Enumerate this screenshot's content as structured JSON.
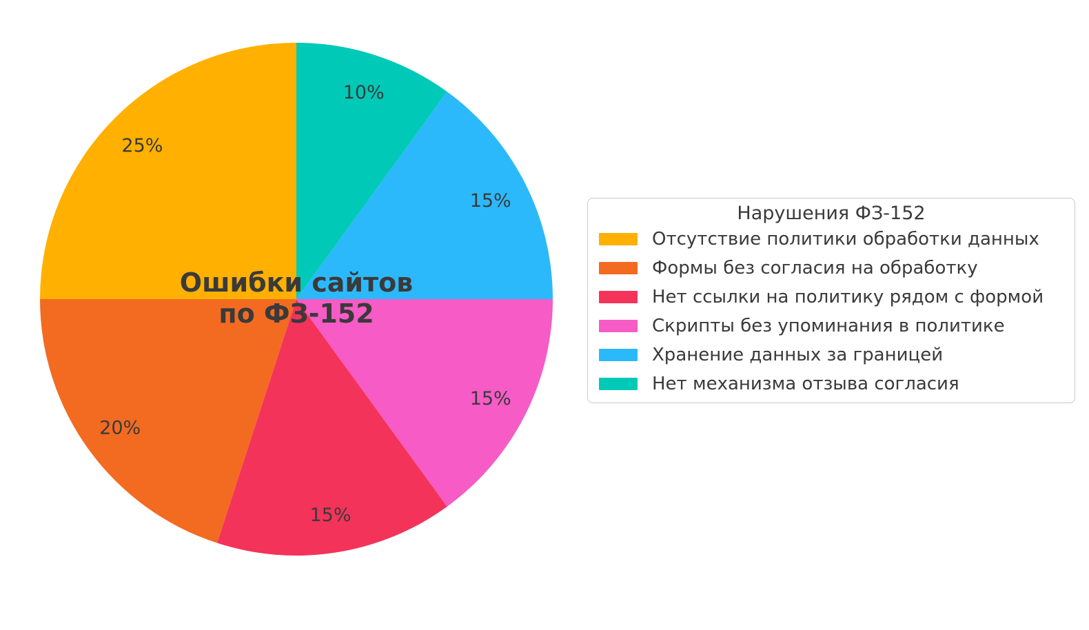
{
  "canvas": {
    "background": "#FFFFFF"
  },
  "colors": {
    "label_text": "#3A3A3A",
    "legend_border": "#C9C9C9",
    "legend_background": "#FFFFFF"
  },
  "chart_data": {
    "type": "pie",
    "center_title_lines": [
      "Ошибки сайтов",
      "по ФЗ-152"
    ],
    "start_angle_deg": 90,
    "counterclockwise": true,
    "pct_distance": 0.85,
    "slices": [
      {
        "label": "Отсутствие политики обработки данных",
        "value": 25,
        "pct_label": "25%",
        "color": "#FFB000"
      },
      {
        "label": "Формы без согласия на обработку",
        "value": 20,
        "pct_label": "20%",
        "color": "#F26B21"
      },
      {
        "label": "Нет ссылки на политику рядом с формой",
        "value": 15,
        "pct_label": "15%",
        "color": "#F4335A"
      },
      {
        "label": "Скрипты без упоминания в политике",
        "value": 15,
        "pct_label": "15%",
        "color": "#F65BC6"
      },
      {
        "label": "Хранение данных за границей",
        "value": 15,
        "pct_label": "15%",
        "color": "#2CB9FB"
      },
      {
        "label": "Нет механизма отзыва согласия",
        "value": 10,
        "pct_label": "10%",
        "color": "#00C9B7"
      }
    ],
    "legend": {
      "title": "Нарушения ФЗ-152",
      "position": "center right"
    }
  }
}
